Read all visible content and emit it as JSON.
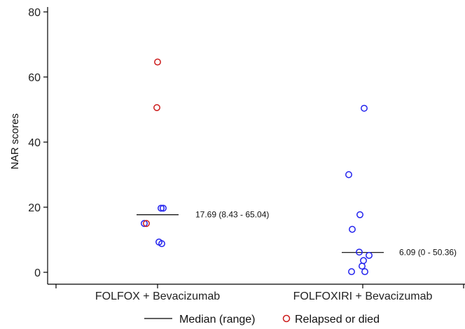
{
  "chart_data": {
    "type": "scatter",
    "ylabel": "NAR scores",
    "ylim": [
      0,
      80
    ],
    "yticks": [
      0,
      20,
      40,
      60,
      80
    ],
    "categories": [
      "FOLFOX + Bevacizumab",
      "FOLFOXIRI + Bevacizumab"
    ],
    "groups": [
      {
        "category": "FOLFOX + Bevacizumab",
        "median": 17.69,
        "median_label": "17.69 (8.43 - 65.04)",
        "points": [
          {
            "y": 64.6,
            "relapsed_or_died": true
          },
          {
            "y": 50.6,
            "relapsed_or_died": true
          },
          {
            "y": 19.7,
            "relapsed_or_died": false
          },
          {
            "y": 19.7,
            "relapsed_or_died": false
          },
          {
            "y": 15.0,
            "relapsed_or_died": false
          },
          {
            "y": 15.0,
            "relapsed_or_died": true
          },
          {
            "y": 9.3,
            "relapsed_or_died": false
          },
          {
            "y": 8.8,
            "relapsed_or_died": false
          }
        ]
      },
      {
        "category": "FOLFOXIRI + Bevacizumab",
        "median": 6.09,
        "median_label": "6.09 (0 - 50.36)",
        "points": [
          {
            "y": 50.4,
            "relapsed_or_died": false
          },
          {
            "y": 30.0,
            "relapsed_or_died": false
          },
          {
            "y": 17.7,
            "relapsed_or_died": false
          },
          {
            "y": 13.2,
            "relapsed_or_died": false
          },
          {
            "y": 6.2,
            "relapsed_or_died": false
          },
          {
            "y": 5.2,
            "relapsed_or_died": false
          },
          {
            "y": 3.6,
            "relapsed_or_died": false
          },
          {
            "y": 1.9,
            "relapsed_or_died": false
          },
          {
            "y": 0.2,
            "relapsed_or_died": false
          },
          {
            "y": 0.2,
            "relapsed_or_died": false
          }
        ]
      }
    ],
    "legend": {
      "position": "bottom",
      "items": [
        {
          "label": "Median (range)",
          "marker": "line"
        },
        {
          "label": "Relapsed or died",
          "marker": "circle"
        }
      ]
    },
    "colors": {
      "default_point": "#2222ee",
      "relapsed_point": "#cc1b1b",
      "median_line": "#000000",
      "axis": "#000000"
    }
  }
}
